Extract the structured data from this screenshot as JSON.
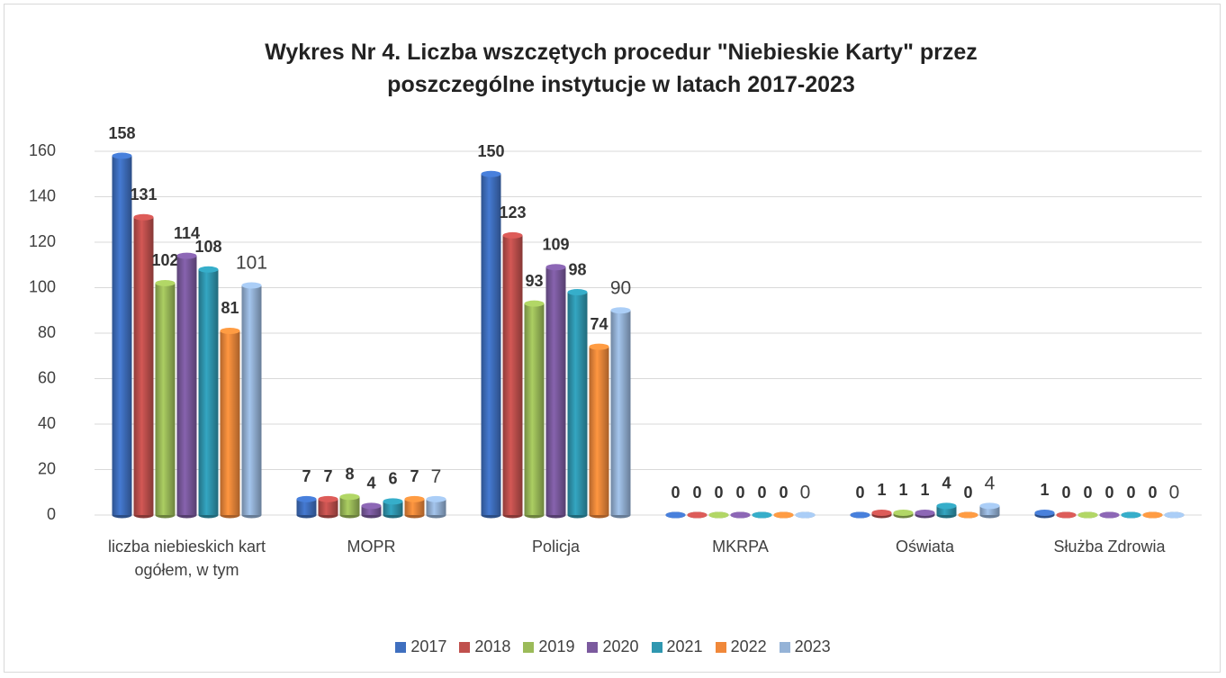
{
  "chart_data": {
    "type": "bar3d",
    "title": "Wykres Nr 4. Liczba wszczętych procedur \"Niebieskie Karty\" przez poszczególne instytucje w latach 2017-2023",
    "categories": [
      "liczba niebieskich kart ogółem, w tym",
      "MOPR",
      "Policja",
      "MKRPA",
      "Oświata",
      "Służba Zdrowia"
    ],
    "series": [
      {
        "name": "2017",
        "color": "#3f6fbf",
        "values": [
          158,
          7,
          150,
          0,
          0,
          1
        ]
      },
      {
        "name": "2018",
        "color": "#c0504d",
        "values": [
          131,
          7,
          123,
          0,
          1,
          0
        ]
      },
      {
        "name": "2019",
        "color": "#9bbb59",
        "values": [
          102,
          8,
          93,
          0,
          1,
          0
        ]
      },
      {
        "name": "2020",
        "color": "#7b5a9e",
        "values": [
          114,
          4,
          109,
          0,
          1,
          0
        ]
      },
      {
        "name": "2021",
        "color": "#2f97b0",
        "values": [
          108,
          6,
          98,
          0,
          4,
          0
        ]
      },
      {
        "name": "2022",
        "color": "#f0883a",
        "values": [
          81,
          7,
          74,
          0,
          0,
          0
        ]
      },
      {
        "name": "2023",
        "color": "#95b3d7",
        "values": [
          101,
          7,
          90,
          0,
          4,
          0
        ]
      }
    ],
    "ylim": [
      0,
      160
    ],
    "yticks": [
      0,
      20,
      40,
      60,
      80,
      100,
      120,
      140,
      160
    ],
    "grid": true,
    "legend": "bottom"
  }
}
